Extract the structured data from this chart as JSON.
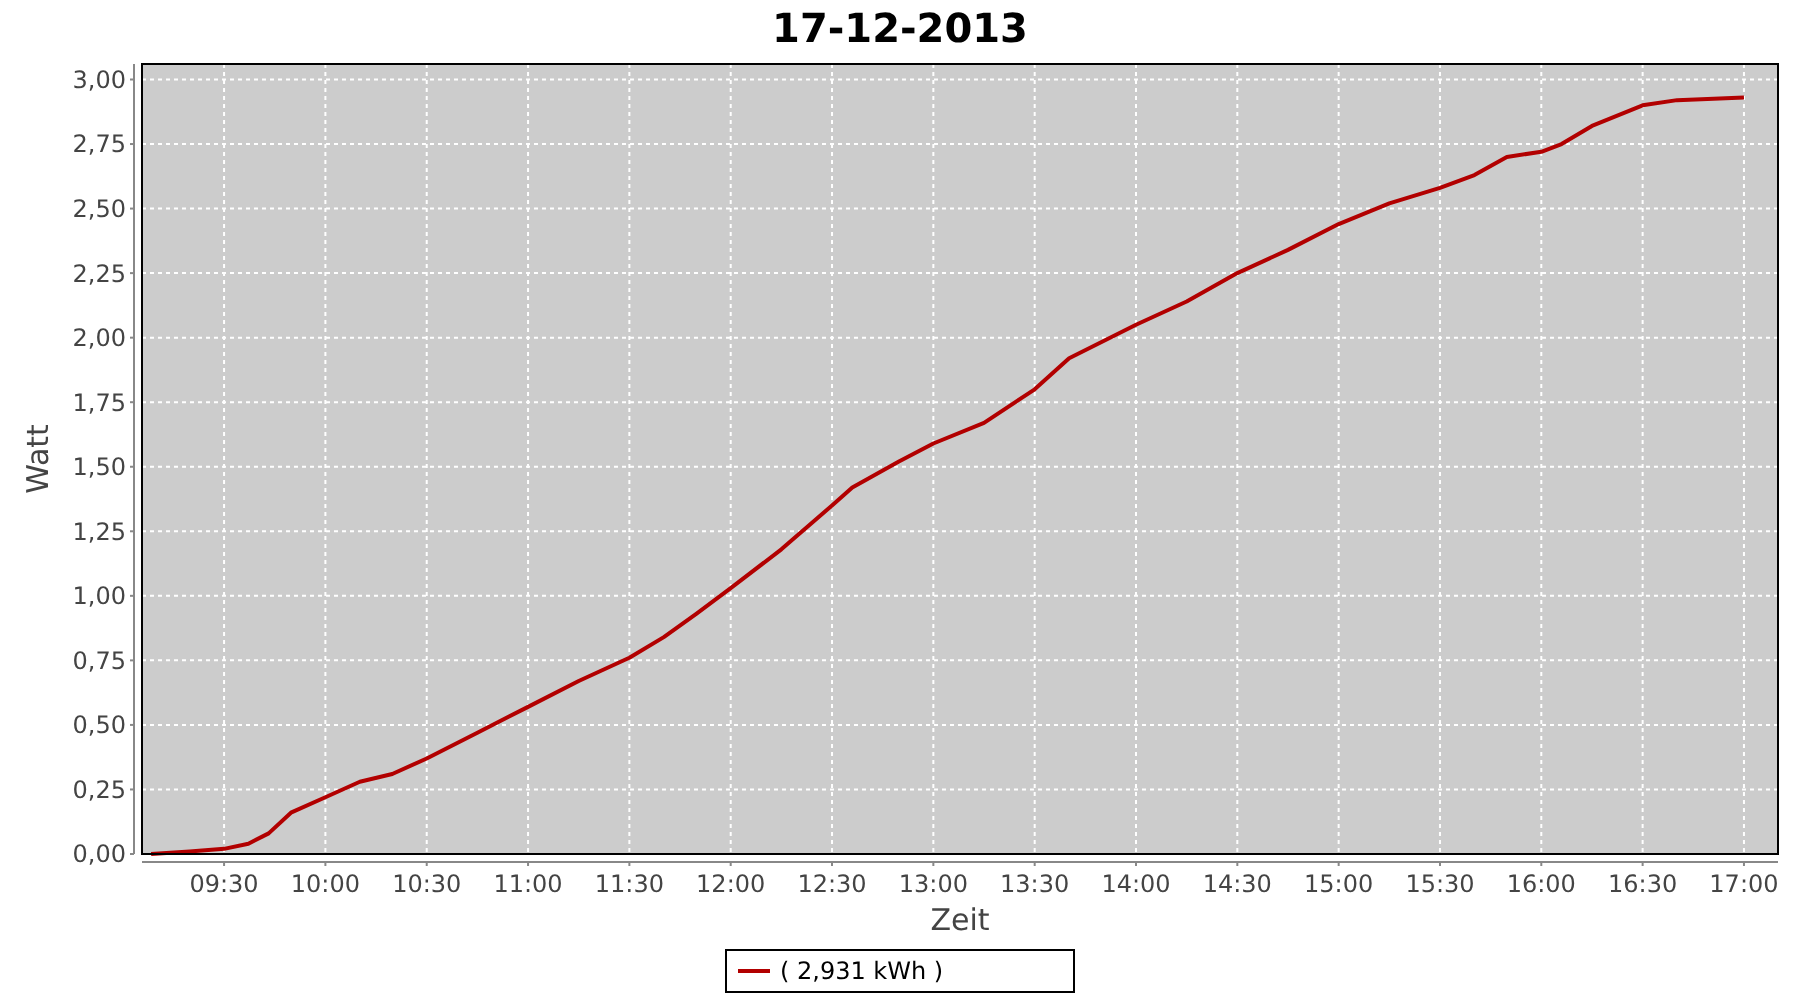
{
  "chart_data": {
    "type": "line",
    "title": "17-12-2013",
    "xlabel": "Zeit",
    "ylabel": "Watt",
    "xlim": [
      9.095,
      17.168
    ],
    "xticks": [
      {
        "value": 9.5,
        "label": "09:30"
      },
      {
        "value": 10,
        "label": "10:00"
      },
      {
        "value": 10.5,
        "label": "10:30"
      },
      {
        "value": 11,
        "label": "11:00"
      },
      {
        "value": 11.5,
        "label": "11:30"
      },
      {
        "value": 12,
        "label": "12:00"
      },
      {
        "value": 12.5,
        "label": "12:30"
      },
      {
        "value": 13,
        "label": "13:00"
      },
      {
        "value": 13.5,
        "label": "13:30"
      },
      {
        "value": 14,
        "label": "14:00"
      },
      {
        "value": 14.5,
        "label": "14:30"
      },
      {
        "value": 15,
        "label": "15:00"
      },
      {
        "value": 15.5,
        "label": "15:30"
      },
      {
        "value": 16,
        "label": "16:00"
      },
      {
        "value": 16.5,
        "label": "16:30"
      },
      {
        "value": 17,
        "label": "17:00"
      }
    ],
    "ylim": [
      0,
      3.06
    ],
    "yticks": [
      {
        "value": 0,
        "label": "0,00"
      },
      {
        "value": 0.25,
        "label": "0,25"
      },
      {
        "value": 0.5,
        "label": "0,50"
      },
      {
        "value": 0.75,
        "label": "0,75"
      },
      {
        "value": 1,
        "label": "1,00"
      },
      {
        "value": 1.25,
        "label": "1,25"
      },
      {
        "value": 1.5,
        "label": "1,50"
      },
      {
        "value": 1.75,
        "label": "1,75"
      },
      {
        "value": 2,
        "label": "2,00"
      },
      {
        "value": 2.25,
        "label": "2,25"
      },
      {
        "value": 2.5,
        "label": "2,50"
      },
      {
        "value": 2.75,
        "label": "2,75"
      },
      {
        "value": 3,
        "label": "3,00"
      }
    ],
    "x": [
      9.14,
      9.33,
      9.5,
      9.62,
      9.72,
      9.83,
      10,
      10.17,
      10.33,
      10.5,
      10.75,
      11,
      11.25,
      11.5,
      11.67,
      11.83,
      12,
      12.25,
      12.5,
      12.6,
      12.83,
      13,
      13.25,
      13.5,
      13.67,
      14,
      14.25,
      14.5,
      14.75,
      15,
      15.25,
      15.5,
      15.67,
      15.83,
      16,
      16.1,
      16.25,
      16.5,
      16.67,
      17
    ],
    "series": [
      {
        "name": "( 2,931 kWh )",
        "color": "#b20000",
        "values": [
          0,
          0.01,
          0.02,
          0.04,
          0.08,
          0.16,
          0.22,
          0.28,
          0.31,
          0.37,
          0.47,
          0.57,
          0.67,
          0.76,
          0.84,
          0.93,
          1.03,
          1.18,
          1.35,
          1.42,
          1.52,
          1.59,
          1.67,
          1.8,
          1.92,
          2.05,
          2.14,
          2.25,
          2.34,
          2.44,
          2.52,
          2.58,
          2.63,
          2.7,
          2.72,
          2.75,
          2.82,
          2.9,
          2.92,
          2.93
        ]
      }
    ],
    "grid": true,
    "legend": "bottom",
    "marker": "none",
    "line_style": "solid"
  }
}
